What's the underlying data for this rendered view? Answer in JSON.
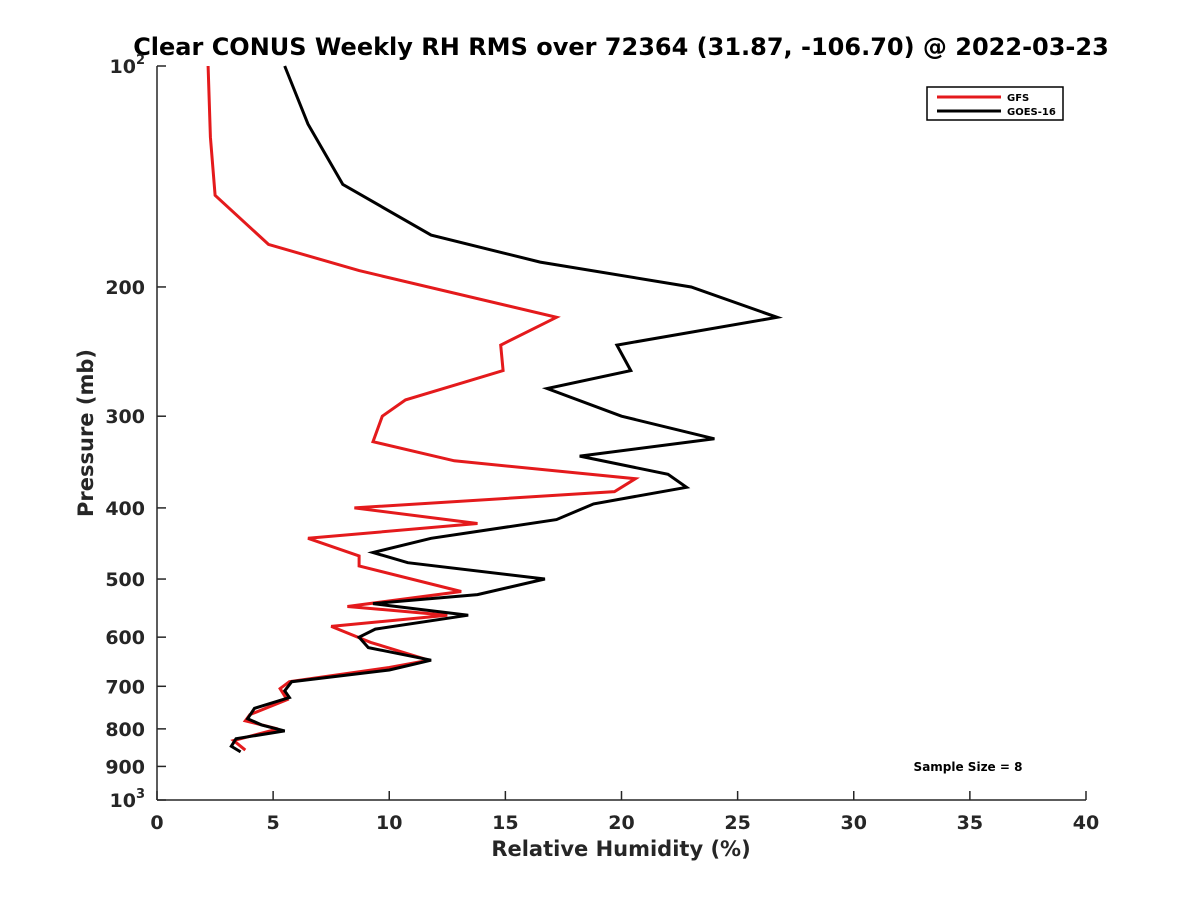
{
  "chart_data": {
    "type": "line",
    "title": "Clear CONUS Weekly RH RMS over 72364 (31.87, -106.70) @ 2022-03-23",
    "xlabel": "Relative Humidity (%)",
    "ylabel": "Pressure (mb)",
    "xlim": [
      0,
      40
    ],
    "ylim": [
      100,
      1000
    ],
    "y_scale": "log",
    "y_reversed": true,
    "x_ticks": [
      {
        "value": 0,
        "label": "0"
      },
      {
        "value": 5,
        "label": "5"
      },
      {
        "value": 10,
        "label": "10"
      },
      {
        "value": 15,
        "label": "15"
      },
      {
        "value": 20,
        "label": "20"
      },
      {
        "value": 25,
        "label": "25"
      },
      {
        "value": 30,
        "label": "30"
      },
      {
        "value": 35,
        "label": "35"
      },
      {
        "value": 40,
        "label": "40"
      }
    ],
    "y_ticks": [
      {
        "value": 100,
        "base": "10",
        "exp": "2"
      },
      {
        "value": 200,
        "label": "200"
      },
      {
        "value": 300,
        "label": "300"
      },
      {
        "value": 400,
        "label": "400"
      },
      {
        "value": 500,
        "label": "500"
      },
      {
        "value": 600,
        "label": "600"
      },
      {
        "value": 700,
        "label": "700"
      },
      {
        "value": 800,
        "label": "800"
      },
      {
        "value": 900,
        "label": "900"
      },
      {
        "value": 1000,
        "base": "10",
        "exp": "3"
      }
    ],
    "legend_position": "top-right",
    "grid": false,
    "series": [
      {
        "name": "GFS",
        "color": "#e41a1c",
        "points": [
          [
            2.2,
            100
          ],
          [
            2.3,
            125
          ],
          [
            2.5,
            150
          ],
          [
            4.8,
            175
          ],
          [
            8.7,
            190
          ],
          [
            17.2,
            220
          ],
          [
            14.8,
            240
          ],
          [
            14.9,
            260
          ],
          [
            10.7,
            285
          ],
          [
            9.7,
            300
          ],
          [
            9.3,
            325
          ],
          [
            12.8,
            345
          ],
          [
            20.6,
            365
          ],
          [
            19.7,
            380
          ],
          [
            8.5,
            400
          ],
          [
            13.8,
            420
          ],
          [
            6.5,
            440
          ],
          [
            8.7,
            465
          ],
          [
            8.7,
            480
          ],
          [
            13.1,
            520
          ],
          [
            8.2,
            545
          ],
          [
            12.5,
            560
          ],
          [
            7.5,
            580
          ],
          [
            9.2,
            610
          ],
          [
            11.7,
            645
          ],
          [
            10.0,
            660
          ],
          [
            5.7,
            690
          ],
          [
            5.3,
            705
          ],
          [
            5.6,
            730
          ],
          [
            4.0,
            765
          ],
          [
            3.8,
            780
          ],
          [
            5.2,
            800
          ],
          [
            3.3,
            830
          ],
          [
            3.8,
            855
          ]
        ]
      },
      {
        "name": "GOES-16",
        "color": "#000000",
        "points": [
          [
            5.5,
            100
          ],
          [
            6.5,
            120
          ],
          [
            8.0,
            145
          ],
          [
            11.8,
            170
          ],
          [
            16.5,
            185
          ],
          [
            23.0,
            200
          ],
          [
            26.7,
            220
          ],
          [
            19.8,
            240
          ],
          [
            20.4,
            260
          ],
          [
            16.8,
            275
          ],
          [
            20.0,
            300
          ],
          [
            24.0,
            322
          ],
          [
            18.2,
            340
          ],
          [
            22.0,
            360
          ],
          [
            22.8,
            375
          ],
          [
            18.8,
            395
          ],
          [
            17.2,
            415
          ],
          [
            11.8,
            440
          ],
          [
            9.3,
            460
          ],
          [
            10.8,
            475
          ],
          [
            16.7,
            500
          ],
          [
            13.8,
            525
          ],
          [
            9.3,
            540
          ],
          [
            13.4,
            560
          ],
          [
            9.4,
            585
          ],
          [
            8.7,
            600
          ],
          [
            9.1,
            620
          ],
          [
            11.8,
            645
          ],
          [
            10.0,
            665
          ],
          [
            5.8,
            690
          ],
          [
            5.5,
            710
          ],
          [
            5.7,
            725
          ],
          [
            4.2,
            750
          ],
          [
            3.9,
            775
          ],
          [
            4.5,
            790
          ],
          [
            5.5,
            805
          ],
          [
            3.4,
            825
          ],
          [
            3.2,
            845
          ],
          [
            3.6,
            860
          ]
        ]
      }
    ],
    "annotations": [
      {
        "text": "Sample Size = 8"
      }
    ]
  }
}
